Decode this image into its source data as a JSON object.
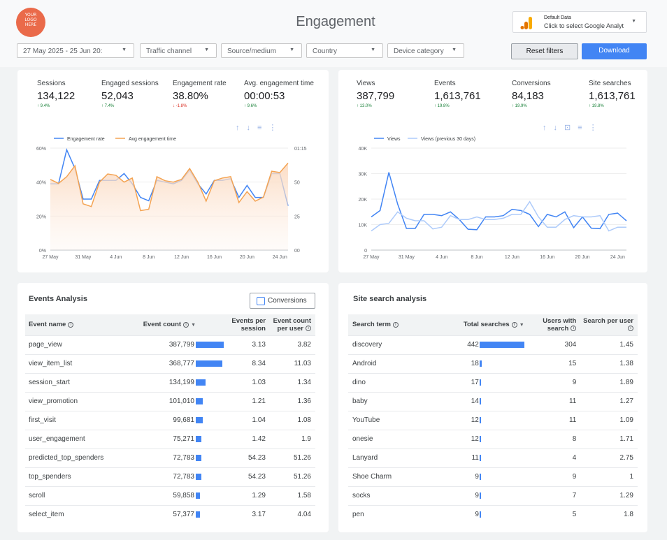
{
  "header": {
    "logo_text": [
      "YOUR",
      "LOGO",
      "HERE"
    ],
    "title": "Engagement",
    "data_source": {
      "title": "Default Data",
      "subtitle": "Click to select Google Analyt"
    }
  },
  "filters": {
    "date_range": "27 May 2025 - 25 Jun 20:",
    "traffic_channel": "Traffic channel",
    "source_medium": "Source/medium",
    "country": "Country",
    "device_category": "Device category"
  },
  "buttons": {
    "reset": "Reset filters",
    "download": "Download"
  },
  "left_panel": {
    "kpis": [
      {
        "label": "Sessions",
        "value": "134,122",
        "delta": "↑ 9.4%",
        "dir": "up"
      },
      {
        "label": "Engaged sessions",
        "value": "52,043",
        "delta": "↑ 7.4%",
        "dir": "up"
      },
      {
        "label": "Engagement rate",
        "value": "38.80%",
        "delta": "↓ -1.8%",
        "dir": "down"
      },
      {
        "label": "Avg. engagement time",
        "value": "00:00:53",
        "delta": "↑ 9.6%",
        "dir": "up"
      }
    ]
  },
  "right_panel": {
    "kpis": [
      {
        "label": "Views",
        "value": "387,799",
        "delta": "↑ 13.0%",
        "dir": "up"
      },
      {
        "label": "Events",
        "value": "1,613,761",
        "delta": "↑ 19.8%",
        "dir": "up"
      },
      {
        "label": "Conversions",
        "value": "84,183",
        "delta": "↑ 19.9%",
        "dir": "up"
      },
      {
        "label": "Site searches",
        "value": "1,613,761",
        "delta": "↑ 19.8%",
        "dir": "up"
      }
    ]
  },
  "icons": {
    "toolbar_left": [
      "arrow-up-icon",
      "arrow-down-icon",
      "filter-icon",
      "more-icon"
    ],
    "toolbar_right": [
      "arrow-up-icon",
      "arrow-down-icon",
      "drill-icon",
      "filter-icon",
      "more-icon"
    ]
  },
  "colors": {
    "accent": "#4285f4",
    "orange": "#f4a352",
    "light_blue": "#aecbfa",
    "up": "#188038",
    "down": "#d93025"
  },
  "chart_data": [
    {
      "type": "line",
      "x": [
        "27 May",
        "28 May",
        "29 May",
        "30 May",
        "31 May",
        "1 Jun",
        "2 Jun",
        "3 Jun",
        "4 Jun",
        "5 Jun",
        "6 Jun",
        "7 Jun",
        "8 Jun",
        "9 Jun",
        "10 Jun",
        "11 Jun",
        "12 Jun",
        "13 Jun",
        "14 Jun",
        "15 Jun",
        "16 Jun",
        "17 Jun",
        "18 Jun",
        "19 Jun",
        "20 Jun",
        "21 Jun",
        "22 Jun",
        "23 Jun",
        "24 Jun",
        "25 Jun"
      ],
      "xticks": [
        "27 May",
        "31 May",
        "4 Jun",
        "8 Jun",
        "12 Jun",
        "16 Jun",
        "20 Jun",
        "24 Jun"
      ],
      "yticks_left": [
        "0%",
        "20%",
        "40%",
        "60%"
      ],
      "yticks_right": [
        "00",
        "25",
        "50",
        "01:15"
      ],
      "ylim_left": [
        0,
        60
      ],
      "ylim_right": [
        0,
        75
      ],
      "series": [
        {
          "name": "Engagement rate",
          "axis": "left",
          "values": [
            39,
            39,
            59,
            48,
            30,
            30,
            41,
            41,
            41,
            45,
            39,
            31,
            29,
            41,
            40,
            39,
            41,
            47,
            39,
            33,
            41,
            41,
            42,
            31,
            38,
            31,
            31,
            45,
            45,
            26
          ]
        },
        {
          "name": "Avg engagement time",
          "axis": "right",
          "values": [
            52,
            49,
            54,
            62,
            34,
            32,
            50,
            56,
            55,
            50,
            53,
            29,
            30,
            54,
            51,
            50,
            52,
            60,
            50,
            36,
            51,
            53,
            54,
            35,
            43,
            36,
            39,
            58,
            57,
            64
          ]
        }
      ],
      "legend_position": "top-left"
    },
    {
      "type": "line",
      "x": [
        "27 May",
        "28 May",
        "29 May",
        "30 May",
        "31 May",
        "1 Jun",
        "2 Jun",
        "3 Jun",
        "4 Jun",
        "5 Jun",
        "6 Jun",
        "7 Jun",
        "8 Jun",
        "9 Jun",
        "10 Jun",
        "11 Jun",
        "12 Jun",
        "13 Jun",
        "14 Jun",
        "15 Jun",
        "16 Jun",
        "17 Jun",
        "18 Jun",
        "19 Jun",
        "20 Jun",
        "21 Jun",
        "22 Jun",
        "23 Jun",
        "24 Jun",
        "25 Jun"
      ],
      "xticks": [
        "27 May",
        "31 May",
        "4 Jun",
        "8 Jun",
        "12 Jun",
        "16 Jun",
        "20 Jun",
        "24 Jun"
      ],
      "yticks": [
        "0",
        "10K",
        "20K",
        "30K",
        "40K"
      ],
      "ylim": [
        0,
        40000
      ],
      "series": [
        {
          "name": "Views",
          "values": [
            13000,
            15500,
            30500,
            18000,
            8500,
            8500,
            14000,
            14000,
            13500,
            15000,
            12000,
            8200,
            8000,
            13000,
            13000,
            13500,
            16000,
            15500,
            14000,
            9200,
            14000,
            13000,
            15000,
            8800,
            13000,
            8600,
            8400,
            14000,
            14500,
            11500
          ]
        },
        {
          "name": "Views (previous 30 days)",
          "values": [
            7500,
            10000,
            10500,
            15000,
            12500,
            11500,
            11500,
            8300,
            9000,
            13500,
            12000,
            12000,
            13000,
            12000,
            12000,
            12500,
            14000,
            14000,
            19000,
            13000,
            9000,
            9000,
            12000,
            13500,
            13000,
            13000,
            13500,
            7500,
            9000,
            9000
          ]
        }
      ],
      "legend_position": "top-left"
    }
  ],
  "events_analysis": {
    "title": "Events Analysis",
    "conversions_toggle": "Conversions",
    "headers": [
      "Event name",
      "Event count",
      "Events per session",
      "Event count per user"
    ],
    "rows": [
      {
        "name": "page_view",
        "count": "387,799",
        "count_value": 387799,
        "per_session": "3.13",
        "per_user": "3.82"
      },
      {
        "name": "view_item_list",
        "count": "368,777",
        "count_value": 368777,
        "per_session": "8.34",
        "per_user": "11.03"
      },
      {
        "name": "session_start",
        "count": "134,199",
        "count_value": 134199,
        "per_session": "1.03",
        "per_user": "1.34"
      },
      {
        "name": "view_promotion",
        "count": "101,010",
        "count_value": 101010,
        "per_session": "1.21",
        "per_user": "1.36"
      },
      {
        "name": "first_visit",
        "count": "99,681",
        "count_value": 99681,
        "per_session": "1.04",
        "per_user": "1.08"
      },
      {
        "name": "user_engagement",
        "count": "75,271",
        "count_value": 75271,
        "per_session": "1.42",
        "per_user": "1.9"
      },
      {
        "name": "predicted_top_spenders",
        "count": "72,783",
        "count_value": 72783,
        "per_session": "54.23",
        "per_user": "51.26"
      },
      {
        "name": "top_spenders",
        "count": "72,783",
        "count_value": 72783,
        "per_session": "54.23",
        "per_user": "51.26"
      },
      {
        "name": "scroll",
        "count": "59,858",
        "count_value": 59858,
        "per_session": "1.29",
        "per_user": "1.58"
      },
      {
        "name": "select_item",
        "count": "57,377",
        "count_value": 57377,
        "per_session": "3.17",
        "per_user": "4.04"
      }
    ]
  },
  "site_search": {
    "title": "Site search analysis",
    "headers": [
      "Search term",
      "Total searches",
      "Users with search",
      "Search per user"
    ],
    "rows": [
      {
        "term": "discovery",
        "total": "442",
        "total_value": 442,
        "users": "304",
        "per_user": "1.45"
      },
      {
        "term": "Android",
        "total": "18",
        "total_value": 18,
        "users": "15",
        "per_user": "1.38"
      },
      {
        "term": "dino",
        "total": "17",
        "total_value": 17,
        "users": "9",
        "per_user": "1.89"
      },
      {
        "term": "baby",
        "total": "14",
        "total_value": 14,
        "users": "11",
        "per_user": "1.27"
      },
      {
        "term": "YouTube",
        "total": "12",
        "total_value": 12,
        "users": "11",
        "per_user": "1.09"
      },
      {
        "term": "onesie",
        "total": "12",
        "total_value": 12,
        "users": "8",
        "per_user": "1.71"
      },
      {
        "term": "Lanyard",
        "total": "11",
        "total_value": 11,
        "users": "4",
        "per_user": "2.75"
      },
      {
        "term": "Shoe Charm",
        "total": "9",
        "total_value": 9,
        "users": "9",
        "per_user": "1"
      },
      {
        "term": "socks",
        "total": "9",
        "total_value": 9,
        "users": "7",
        "per_user": "1.29"
      },
      {
        "term": "pen",
        "total": "9",
        "total_value": 9,
        "users": "5",
        "per_user": "1.8"
      }
    ]
  }
}
